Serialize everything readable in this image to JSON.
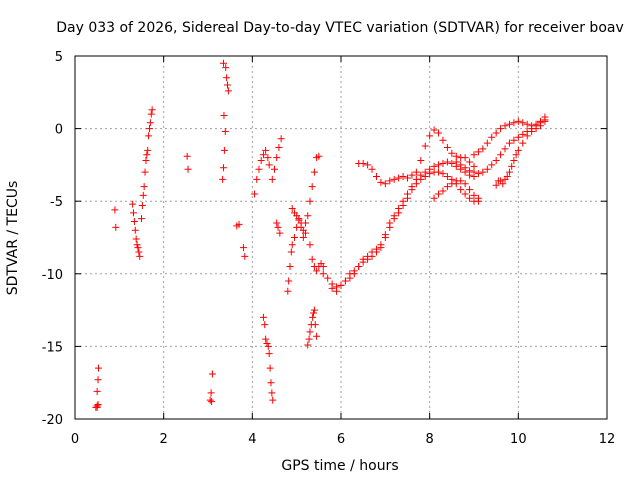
{
  "chart_data": {
    "type": "scatter",
    "title": "Day 033 of 2026, Sidereal Day-to-day VTEC variation (SDTVAR) for receiver boav",
    "xlabel": "GPS time / hours",
    "ylabel": "SDTVAR / TECUs",
    "xlim": [
      0,
      12
    ],
    "ylim": [
      -20,
      5
    ],
    "xticks": [
      "0",
      "2",
      "4",
      "6",
      "8",
      "10",
      "12"
    ],
    "yticks": [
      "5",
      "0",
      "-5",
      "-10",
      "-15",
      "-20"
    ],
    "xtick_values": [
      0,
      2,
      4,
      6,
      8,
      10,
      12
    ],
    "ytick_values": [
      5,
      0,
      -5,
      -10,
      -15,
      -20
    ],
    "grid": true,
    "marker": "+",
    "color": "#ff0000",
    "series": [
      {
        "name": "s1",
        "x": [
          0.47,
          0.5,
          0.52,
          0.5,
          0.52,
          0.53,
          0.5
        ],
        "y": [
          -19.2,
          -19.1,
          -19.0,
          -18.1,
          -17.3,
          -16.5,
          -19.2
        ]
      },
      {
        "name": "s2",
        "x": [
          0.9,
          0.92
        ],
        "y": [
          -5.6,
          -6.8
        ]
      },
      {
        "name": "s3",
        "x": [
          1.3,
          1.32,
          1.34,
          1.36,
          1.38,
          1.4,
          1.42,
          1.44,
          1.46
        ],
        "y": [
          -5.2,
          -5.8,
          -6.4,
          -7.0,
          -7.6,
          -8.0,
          -8.2,
          -8.5,
          -8.8
        ]
      },
      {
        "name": "s4",
        "x": [
          1.5,
          1.52,
          1.54,
          1.56,
          1.58,
          1.6,
          1.62,
          1.64,
          1.66,
          1.68,
          1.7,
          1.72,
          1.74
        ],
        "y": [
          -6.2,
          -5.3,
          -4.6,
          -4.0,
          -3.0,
          -2.2,
          -1.8,
          -1.5,
          -0.5,
          0.0,
          0.4,
          1.0,
          1.3
        ]
      },
      {
        "name": "s5",
        "x": [
          2.53,
          2.55
        ],
        "y": [
          -1.9,
          -2.8
        ]
      },
      {
        "name": "s6",
        "x": [
          3.05,
          3.07,
          3.1,
          3.08
        ],
        "y": [
          -18.7,
          -18.2,
          -16.9,
          -18.8
        ]
      },
      {
        "name": "s7",
        "x": [
          3.33,
          3.35,
          3.37,
          3.39,
          3.36,
          3.35,
          3.4,
          3.42,
          3.44,
          3.46
        ],
        "y": [
          -3.5,
          -2.7,
          -1.5,
          -0.2,
          0.9,
          4.5,
          4.2,
          3.5,
          3.0,
          2.6
        ]
      },
      {
        "name": "s8",
        "x": [
          3.65,
          3.7
        ],
        "y": [
          -6.7,
          -6.6
        ]
      },
      {
        "name": "s9",
        "x": [
          3.8,
          3.83
        ],
        "y": [
          -8.2,
          -8.8
        ]
      },
      {
        "name": "s10",
        "x": [
          4.05,
          4.1,
          4.15,
          4.2,
          4.25,
          4.3,
          4.35,
          4.38
        ],
        "y": [
          -4.5,
          -3.5,
          -2.8,
          -2.2,
          -1.8,
          -1.5,
          -2.0,
          -2.5
        ]
      },
      {
        "name": "s11",
        "x": [
          4.25,
          4.28,
          4.3,
          4.33,
          4.36,
          4.38,
          4.4,
          4.42,
          4.44,
          4.46
        ],
        "y": [
          -13.0,
          -13.5,
          -14.5,
          -14.8,
          -15.0,
          -15.5,
          -16.5,
          -17.5,
          -18.2,
          -18.7
        ]
      },
      {
        "name": "s12",
        "x": [
          4.45,
          4.5,
          4.55,
          4.6,
          4.65
        ],
        "y": [
          -3.5,
          -2.8,
          -2.0,
          -1.3,
          -0.7
        ]
      },
      {
        "name": "s13",
        "x": [
          4.55,
          4.58,
          4.62
        ],
        "y": [
          -6.5,
          -6.8,
          -7.2
        ]
      },
      {
        "name": "s14",
        "x": [
          4.8,
          4.82,
          4.85,
          4.88,
          4.9,
          4.95,
          5.0,
          5.05,
          5.1,
          5.15,
          5.2
        ],
        "y": [
          -11.2,
          -10.5,
          -9.5,
          -8.5,
          -8.0,
          -7.5,
          -6.8,
          -6.3,
          -6.8,
          -7.5,
          -7.2
        ]
      },
      {
        "name": "s15",
        "x": [
          4.9,
          4.95,
          5.0,
          5.05,
          5.1
        ],
        "y": [
          -5.5,
          -5.8,
          -6.0,
          -6.2,
          -6.5
        ]
      },
      {
        "name": "s16",
        "x": [
          5.25,
          5.28,
          5.3,
          5.33,
          5.36,
          5.38,
          5.4,
          5.42,
          5.45
        ],
        "y": [
          -14.9,
          -14.5,
          -14.0,
          -13.5,
          -13.0,
          -12.7,
          -12.5,
          -13.5,
          -14.3
        ]
      },
      {
        "name": "s17",
        "x": [
          5.15,
          5.2,
          5.25,
          5.3,
          5.35,
          5.4,
          5.45,
          5.5
        ],
        "y": [
          -7.0,
          -6.5,
          -6.0,
          -5.0,
          -4.0,
          -3.0,
          -2.0,
          -1.9
        ]
      },
      {
        "name": "s18",
        "x": [
          5.3,
          5.35,
          5.4,
          5.45,
          5.5,
          5.55,
          5.6
        ],
        "y": [
          -8.0,
          -9.0,
          -9.5,
          -9.8,
          -9.5,
          -9.3,
          -9.5
        ]
      },
      {
        "name": "s19",
        "x": [
          5.6,
          5.7,
          5.8,
          5.9,
          6.0,
          6.1,
          6.2,
          6.3,
          6.4,
          6.5,
          6.6,
          6.7,
          6.8,
          6.9,
          7.0,
          7.1,
          7.2,
          7.3,
          7.4,
          7.5,
          7.6,
          7.7,
          7.8,
          7.9,
          8.0,
          8.1,
          8.2,
          8.3,
          8.4,
          8.5,
          8.6,
          8.7,
          8.8,
          8.9,
          9.0
        ],
        "y": [
          -10.0,
          -10.3,
          -10.7,
          -10.9,
          -10.8,
          -10.5,
          -10.3,
          -10.0,
          -9.5,
          -9.0,
          -8.8,
          -8.5,
          -8.3,
          -8.2,
          -7.5,
          -6.5,
          -6.0,
          -5.5,
          -5.0,
          -4.5,
          -4.0,
          -3.5,
          -3.2,
          -3.0,
          -2.8,
          -2.6,
          -2.5,
          -2.4,
          -2.3,
          -2.4,
          -2.6,
          -2.8,
          -3.0,
          -3.2,
          -3.3
        ]
      },
      {
        "name": "s20",
        "x": [
          5.8,
          5.9,
          6.0,
          6.1,
          6.2,
          6.3,
          6.4,
          6.5,
          6.6,
          6.7,
          6.8,
          6.9,
          7.0,
          7.1,
          7.2,
          7.3,
          7.4,
          7.5,
          7.6,
          7.7,
          7.8,
          7.9,
          8.0,
          8.1,
          8.2,
          8.3,
          8.4,
          8.5,
          8.6,
          8.7,
          8.8,
          8.9,
          9.0,
          9.1
        ],
        "y": [
          -11.0,
          -11.2,
          -10.8,
          -10.5,
          -10.0,
          -9.8,
          -9.5,
          -9.2,
          -9.0,
          -8.8,
          -8.5,
          -8.0,
          -7.3,
          -6.8,
          -6.2,
          -5.8,
          -5.3,
          -4.8,
          -4.2,
          -3.8,
          -3.5,
          -3.3,
          -3.1,
          -3.0,
          -3.0,
          -3.1,
          -3.3,
          -3.5,
          -3.8,
          -4.2,
          -4.5,
          -4.8,
          -5.0,
          -4.8
        ]
      },
      {
        "name": "s21",
        "x": [
          6.4,
          6.5,
          6.6,
          6.7,
          6.8,
          6.9,
          7.0,
          7.1,
          7.2,
          7.3,
          7.4,
          7.5,
          7.6,
          7.7,
          7.8,
          7.9,
          8.0,
          8.1,
          8.2,
          8.3,
          8.4,
          8.5,
          8.6,
          8.7,
          8.8,
          8.9,
          9.0
        ],
        "y": [
          -2.4,
          -2.4,
          -2.5,
          -2.8,
          -3.3,
          -3.7,
          -3.8,
          -3.6,
          -3.5,
          -3.4,
          -3.3,
          -3.4,
          -3.2,
          -3.0,
          -2.2,
          -1.2,
          -0.5,
          -0.1,
          -0.3,
          -0.8,
          -1.3,
          -1.7,
          -1.9,
          -2.0,
          -2.0,
          -2.3,
          -2.6
        ]
      },
      {
        "name": "s22",
        "x": [
          8.1,
          8.2,
          8.3,
          8.4,
          8.5,
          8.6,
          8.7,
          8.8,
          8.9,
          9.0,
          9.1
        ],
        "y": [
          -4.8,
          -4.5,
          -4.3,
          -4.0,
          -3.8,
          -3.6,
          -3.6,
          -3.8,
          -4.2,
          -4.6,
          -5.0
        ]
      },
      {
        "name": "s23",
        "x": [
          8.6,
          8.7,
          8.8,
          8.9,
          9.0,
          9.1,
          9.2,
          9.3,
          9.4,
          9.5,
          9.6,
          9.7,
          9.8,
          9.9,
          10.0,
          10.1,
          10.2,
          10.3,
          10.4,
          10.5,
          10.6
        ],
        "y": [
          -2.3,
          -2.5,
          -2.7,
          -2.9,
          -3.0,
          -3.1,
          -3.0,
          -2.8,
          -2.5,
          -2.2,
          -1.8,
          -1.4,
          -1.0,
          -0.8,
          -0.6,
          -0.4,
          -0.2,
          0.0,
          0.2,
          0.4,
          0.6
        ]
      },
      {
        "name": "s24",
        "x": [
          9.0,
          9.1,
          9.2,
          9.3,
          9.4,
          9.5,
          9.6,
          9.7,
          9.8,
          9.9,
          10.0,
          10.1,
          10.2,
          10.3,
          10.4,
          10.5,
          10.6
        ],
        "y": [
          -1.8,
          -1.6,
          -1.4,
          -1.0,
          -0.6,
          -0.3,
          -0.0,
          0.2,
          0.3,
          0.4,
          0.5,
          0.4,
          0.3,
          0.2,
          0.3,
          0.5,
          0.8
        ]
      },
      {
        "name": "s25",
        "x": [
          9.5,
          9.55,
          9.6,
          9.65,
          9.7,
          9.75,
          9.8,
          9.85,
          9.9,
          9.95,
          10.0,
          10.1,
          10.2,
          10.3,
          10.4,
          10.5,
          10.6
        ],
        "y": [
          -3.9,
          -3.6,
          -3.6,
          -3.8,
          -3.5,
          -3.3,
          -3.0,
          -2.6,
          -2.2,
          -1.8,
          -1.5,
          -1.0,
          -0.5,
          -0.2,
          0.0,
          0.2,
          0.5
        ]
      }
    ]
  }
}
